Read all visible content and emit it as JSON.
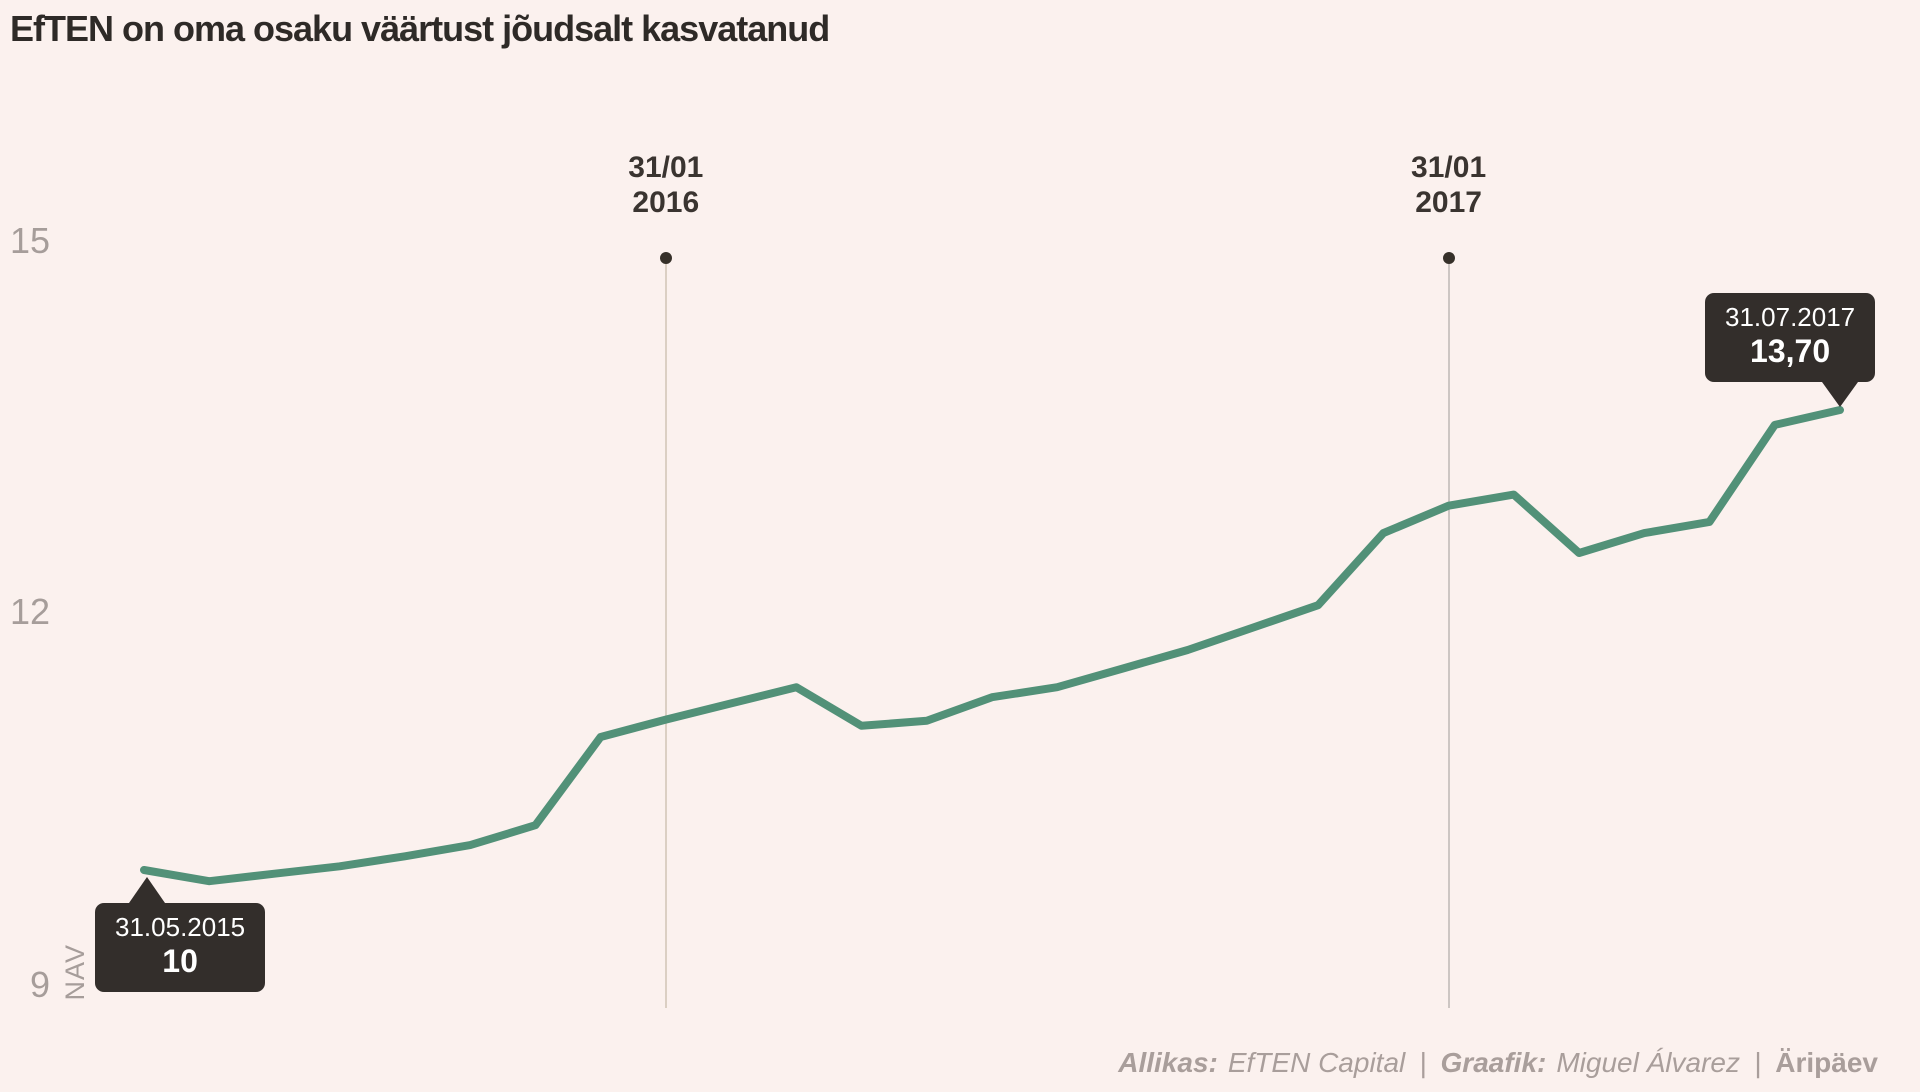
{
  "title": "EfTEN on oma osaku väärtust jõudsalt kasvatanud",
  "colors": {
    "background": "#fbf1ee",
    "line": "#529178",
    "tooltip_bg": "#332e2b",
    "tooltip_text": "#ffffff",
    "axis_label": "#a69d9a",
    "marker_label": "#3a3430",
    "marker_dot": "#363029",
    "marker_line_2016": "#dbcfc3",
    "marker_line_2017": "#cdc6c3",
    "title_color": "#2e2a27",
    "footer_color": "#a99e9b"
  },
  "y_axis": {
    "label": "NAV",
    "ticks": [
      "15",
      "12",
      "9"
    ]
  },
  "markers": [
    {
      "line1": "31/01",
      "line2": "2016",
      "month": "2016-01"
    },
    {
      "line1": "31/01",
      "line2": "2017",
      "month": "2017-01"
    }
  ],
  "callouts": [
    {
      "date": "31.05.2015",
      "value": "10"
    },
    {
      "date": "31.07.2017",
      "value": "13,70"
    }
  ],
  "footer": {
    "source_label": "Allikas:",
    "source": "EfTEN Capital",
    "sep1": "|",
    "graphic_label": "Graafik:",
    "graphic": "Miguel Álvarez",
    "sep2": "|",
    "brand": "Äripäev"
  },
  "chart_data": {
    "type": "line",
    "title": "EfTEN on oma osaku väärtust jõudsalt kasvatanud",
    "xlabel": "",
    "ylabel": "NAV",
    "yticks": [
      9,
      12,
      15
    ],
    "ylim": [
      8.9,
      15.3
    ],
    "grid": false,
    "legend": "none",
    "x": [
      "2015-05",
      "2015-06",
      "2015-07",
      "2015-08",
      "2015-09",
      "2015-10",
      "2015-11",
      "2015-12",
      "2016-01",
      "2016-02",
      "2016-03",
      "2016-04",
      "2016-05",
      "2016-06",
      "2016-07",
      "2016-08",
      "2016-09",
      "2016-10",
      "2016-11",
      "2016-12",
      "2017-01",
      "2017-02",
      "2017-03",
      "2017-04",
      "2017-05",
      "2017-06",
      "2017-07"
    ],
    "values": [
      10.0,
      9.91,
      9.97,
      10.03,
      10.11,
      10.2,
      10.36,
      11.07,
      11.21,
      11.34,
      11.47,
      11.16,
      11.2,
      11.39,
      11.47,
      11.62,
      11.77,
      11.95,
      12.13,
      12.71,
      12.93,
      13.02,
      12.55,
      12.71,
      12.8,
      13.58,
      13.7
    ],
    "annotations": [
      {
        "x": "2015-05",
        "date": "31.05.2015",
        "label": "10"
      },
      {
        "x": "2017-07",
        "date": "31.07.2017",
        "label": "13,70"
      }
    ],
    "event_markers": [
      {
        "x": "2016-01",
        "label": "31/01 2016"
      },
      {
        "x": "2017-01",
        "label": "31/01 2017"
      }
    ]
  }
}
